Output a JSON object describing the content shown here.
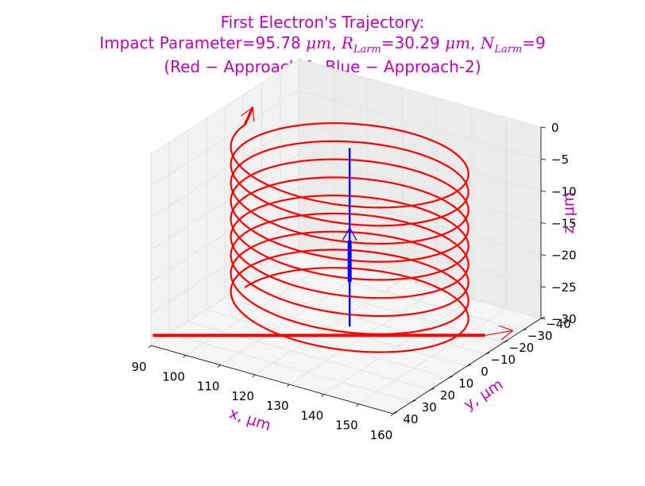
{
  "figure": {
    "title_line1": "First Electron's Trajectory:",
    "title_line2_prefix": "Impact Parameter=95.78 ",
    "title_line2_unit": "μm",
    "title_line2_r_symbol": "R",
    "title_line2_r_sub": "Larm",
    "title_line2_r_value": "=30.29 ",
    "title_line2_r_unit": "μm",
    "title_line2_n_symbol": "N",
    "title_line2_n_sub": "Larm",
    "title_line2_n_value": "=9",
    "title_line3": "(Red − Approach-1, Blue − Approach-2)",
    "title_color": "#bf00bf"
  },
  "chart_data": {
    "type": "line3d",
    "xlabel": "x, μm",
    "ylabel": "y, μm",
    "zlabel": "z, μm",
    "xlim": [
      90,
      160
    ],
    "ylim": [
      -40,
      40
    ],
    "zlim": [
      -30,
      0
    ],
    "x_ticks": [
      "90",
      "100",
      "110",
      "120",
      "130",
      "140",
      "150",
      "160"
    ],
    "y_ticks": [
      "−40",
      "−30",
      "−20",
      "−10",
      "0",
      "10",
      "20",
      "30",
      "40"
    ],
    "z_ticks": [
      "0",
      "−5",
      "−10",
      "−15",
      "−20",
      "−25",
      "−30"
    ],
    "grid": true,
    "series": [
      {
        "label": "Red − Approach-1",
        "color": "#ff0000",
        "kind": "helix",
        "center_x": 126.07,
        "center_y": 0,
        "radius": 30.29,
        "turns": 9,
        "z_start": -27.5,
        "z_end": -2.0,
        "start_x": 95.78
      },
      {
        "label": "Blue − Approach-2",
        "color": "#0000ff",
        "kind": "line",
        "x": 126.07,
        "y": 0,
        "z_start": -29.0,
        "z_end": -1.0
      }
    ]
  }
}
